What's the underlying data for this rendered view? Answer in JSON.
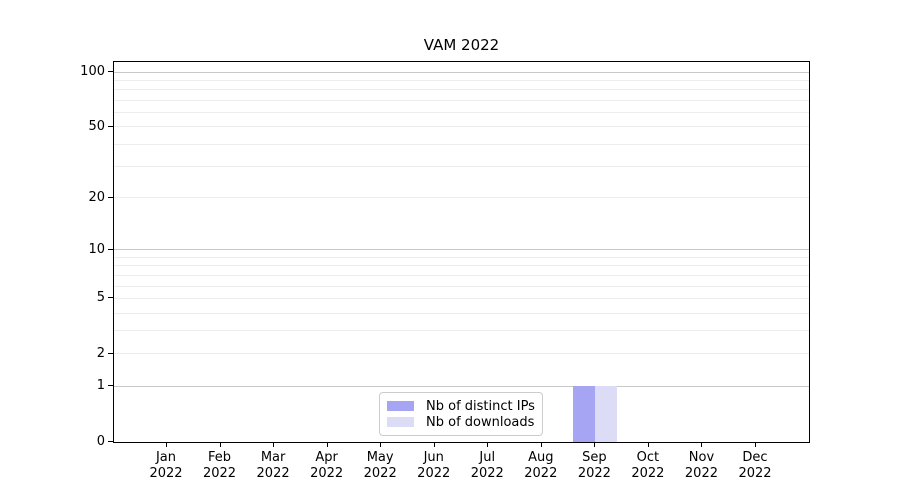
{
  "chart_data": {
    "type": "bar",
    "title": "VAM 2022",
    "categories": [
      "Jan",
      "Feb",
      "Mar",
      "Apr",
      "May",
      "Jun",
      "Jul",
      "Aug",
      "Sep",
      "Oct",
      "Nov",
      "Dec"
    ],
    "x_tick_year": "2022",
    "series": [
      {
        "name": "Nb of distinct IPs",
        "color": "#a5a5f4",
        "values": [
          0,
          0,
          0,
          0,
          0,
          0,
          0,
          0,
          1,
          0,
          0,
          0
        ]
      },
      {
        "name": "Nb of downloads",
        "color": "#dcdcf6",
        "values": [
          0,
          0,
          0,
          0,
          0,
          0,
          0,
          0,
          1,
          0,
          0,
          0
        ]
      }
    ],
    "y_axis": {
      "scale": "log10(value+1)",
      "tick_labels": [
        "0",
        "1",
        "2",
        "5",
        "10",
        "20",
        "50",
        "100"
      ],
      "tick_values": [
        0,
        1,
        2,
        5,
        10,
        20,
        50,
        100
      ],
      "major_grid_values": [
        1,
        10,
        100
      ],
      "minor_grid_values": [
        2,
        3,
        4,
        5,
        6,
        7,
        8,
        9,
        20,
        30,
        40,
        50,
        60,
        70,
        80,
        90
      ],
      "ylim": [
        0,
        113.6
      ]
    },
    "legend": {
      "position": "lower-center-inside"
    },
    "colors": {
      "axis": "#000000",
      "major_grid": "#c8c8c8",
      "minor_grid": "#ededed",
      "background": "#ffffff",
      "text": "#000000"
    }
  }
}
